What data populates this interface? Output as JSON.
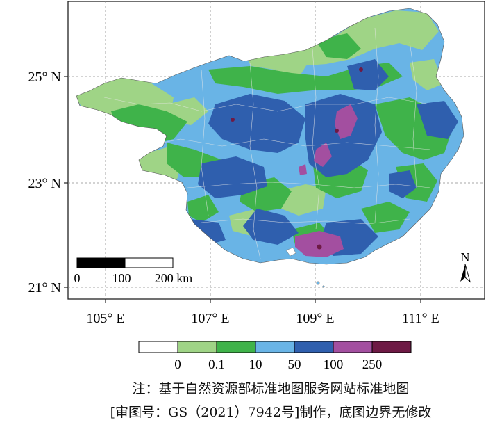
{
  "map": {
    "lat_labels": [
      {
        "value": 25,
        "text": "25° N"
      },
      {
        "value": 23,
        "text": "23° N"
      },
      {
        "value": 21,
        "text": "21° N"
      }
    ],
    "lon_labels": [
      {
        "value": 105,
        "text": "105° E"
      },
      {
        "value": 107,
        "text": "107° E"
      },
      {
        "value": 109,
        "text": "109° E"
      },
      {
        "value": 111,
        "text": "111° E"
      }
    ],
    "extent": {
      "lon_min": 104.4,
      "lon_max": 112.3,
      "lat_min": 20.8,
      "lat_max": 26.4
    },
    "scale_bar": {
      "ticks": [
        "0",
        "100",
        "200 km"
      ]
    },
    "north_arrow": {
      "label": "N"
    },
    "legend": {
      "colors": [
        "#ffffff",
        "#9fd486",
        "#3fb34a",
        "#69b4e6",
        "#2f5fae",
        "#a34fa0",
        "#6e1a45"
      ],
      "tick_labels": [
        "0",
        "0.1",
        "10",
        "50",
        "100",
        "250"
      ]
    }
  },
  "notes": {
    "line1": "注：基于自然资源部标准地图服务网站标准地图",
    "line2": "[审图号：GS（2021）7942号]制作，底图边界无修改"
  }
}
